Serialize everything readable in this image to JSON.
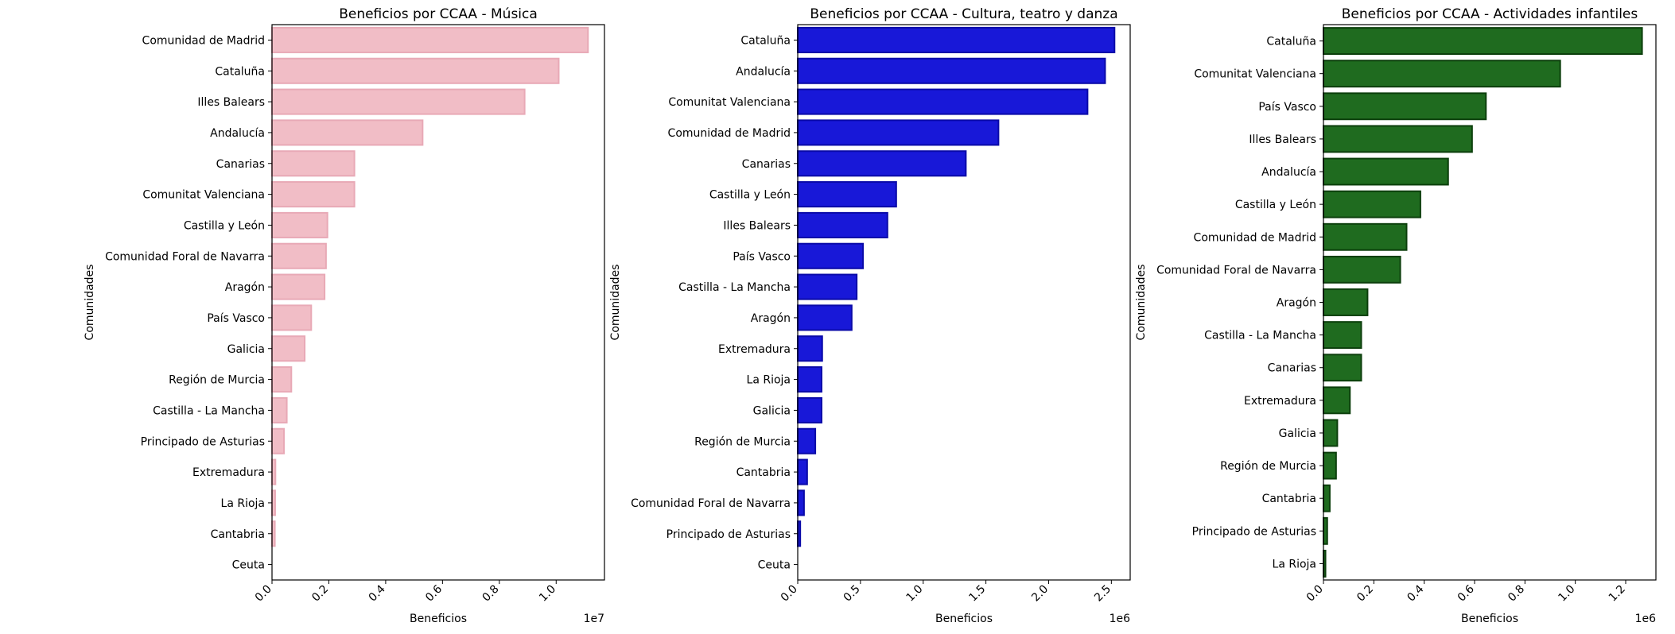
{
  "chart_data": [
    {
      "type": "bar",
      "orientation": "horizontal",
      "title": "Beneficios por CCAA - Música",
      "xlabel": "Beneficios",
      "ylabel": "Comunidades",
      "offset_label": "1e7",
      "color": "#f1bdc6",
      "edge": "#e8a9b6",
      "xlim": [
        0,
        1.17
      ],
      "xticks": [
        "0.0",
        "0.2",
        "0.4",
        "0.6",
        "0.8",
        "1.0"
      ],
      "categories": [
        "Comunidad de Madrid",
        "Cataluña",
        "Illes Balears",
        "Andalucía",
        "Canarias",
        "Comunitat Valenciana",
        "Castilla y León",
        "Comunidad Foral de Navarra",
        "Aragón",
        "País Vasco",
        "Galicia",
        "Región de Murcia",
        "Castilla - La Mancha",
        "Principado de Asturias",
        "Extremadura",
        "La Rioja",
        "Cantabria",
        "Ceuta"
      ],
      "values": [
        1.112,
        1.009,
        0.889,
        0.53,
        0.29,
        0.29,
        0.195,
        0.19,
        0.185,
        0.138,
        0.115,
        0.068,
        0.052,
        0.042,
        0.012,
        0.011,
        0.01,
        0.0
      ]
    },
    {
      "type": "bar",
      "orientation": "horizontal",
      "title": "Beneficios por CCAA - Cultura, teatro y danza",
      "xlabel": "Beneficios",
      "ylabel": "Comunidades",
      "offset_label": "1e6",
      "color": "#1818d8",
      "edge": "#0a0aa8",
      "xlim": [
        0,
        2.65
      ],
      "xticks": [
        "0.0",
        "0.5",
        "1.0",
        "1.5",
        "2.0",
        "2.5"
      ],
      "categories": [
        "Cataluña",
        "Andalucía",
        "Comunitat Valenciana",
        "Comunidad de Madrid",
        "Canarias",
        "Castilla y León",
        "Illes Balears",
        "País Vasco",
        "Castilla - La Mancha",
        "Aragón",
        "Extremadura",
        "La Rioja",
        "Galicia",
        "Región de Murcia",
        "Cantabria",
        "Comunidad Foral de Navarra",
        "Principado de Asturias",
        "Ceuta"
      ],
      "values": [
        2.525,
        2.45,
        2.31,
        1.6,
        1.34,
        0.785,
        0.715,
        0.52,
        0.47,
        0.43,
        0.195,
        0.19,
        0.19,
        0.14,
        0.075,
        0.05,
        0.02,
        0.0
      ]
    },
    {
      "type": "bar",
      "orientation": "horizontal",
      "title": "Beneficios por CCAA - Actividades infantiles",
      "xlabel": "Beneficios",
      "ylabel": "Comunidades",
      "offset_label": "1e6",
      "color": "#1f6b1f",
      "edge": "#0c3f0c",
      "xlim": [
        0,
        1.32
      ],
      "xticks": [
        "0.0",
        "0.2",
        "0.4",
        "0.6",
        "0.8",
        "1.0",
        "1.2"
      ],
      "categories": [
        "Cataluña",
        "Comunitat Valenciana",
        "País Vasco",
        "Illes Balears",
        "Andalucía",
        "Castilla y León",
        "Comunidad de Madrid",
        "Comunidad Foral de Navarra",
        "Aragón",
        "Castilla - La Mancha",
        "Canarias",
        "Extremadura",
        "Galicia",
        "Región de Murcia",
        "Cantabria",
        "Principado de Asturias",
        "La Rioja"
      ],
      "values": [
        1.265,
        0.94,
        0.645,
        0.59,
        0.495,
        0.385,
        0.33,
        0.305,
        0.175,
        0.15,
        0.15,
        0.105,
        0.055,
        0.05,
        0.025,
        0.015,
        0.008
      ]
    }
  ]
}
